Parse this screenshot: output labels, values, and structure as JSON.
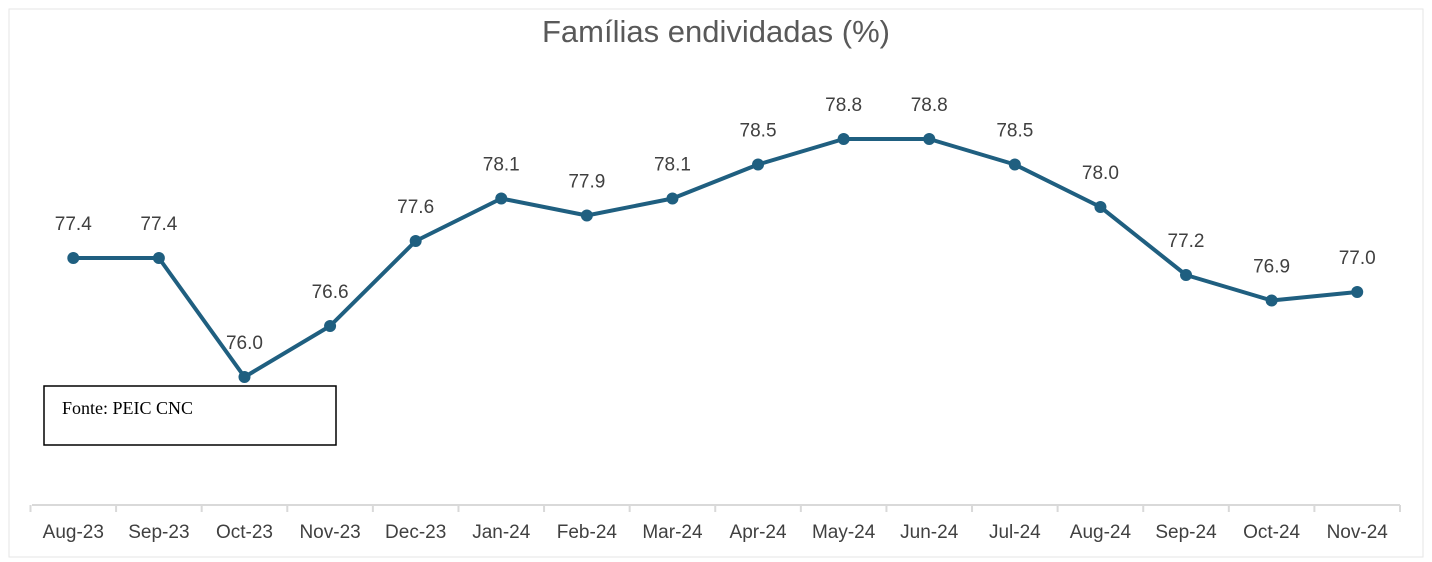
{
  "chart_data": {
    "type": "line",
    "title": "Famílias endividadas (%)",
    "categories": [
      "Aug-23",
      "Sep-23",
      "Oct-23",
      "Nov-23",
      "Dec-23",
      "Jan-24",
      "Feb-24",
      "Mar-24",
      "Apr-24",
      "May-24",
      "Jun-24",
      "Jul-24",
      "Aug-24",
      "Sep-24",
      "Oct-24",
      "Nov-24"
    ],
    "series": [
      {
        "name": "Famílias endividadas",
        "color": "#1f5f80",
        "values": [
          77.4,
          77.4,
          76.0,
          76.6,
          77.6,
          78.1,
          77.9,
          78.1,
          78.5,
          78.8,
          78.8,
          78.5,
          78.0,
          77.2,
          76.9,
          77.0
        ],
        "value_labels": [
          "77.4",
          "77.4",
          "76.0",
          "76.6",
          "77.6",
          "78.1",
          "77.9",
          "78.1",
          "78.5",
          "78.8",
          "78.8",
          "78.5",
          "78.0",
          "77.2",
          "76.9",
          "77.0"
        ]
      }
    ],
    "annotation": "Fonte: PEIC CNC"
  }
}
